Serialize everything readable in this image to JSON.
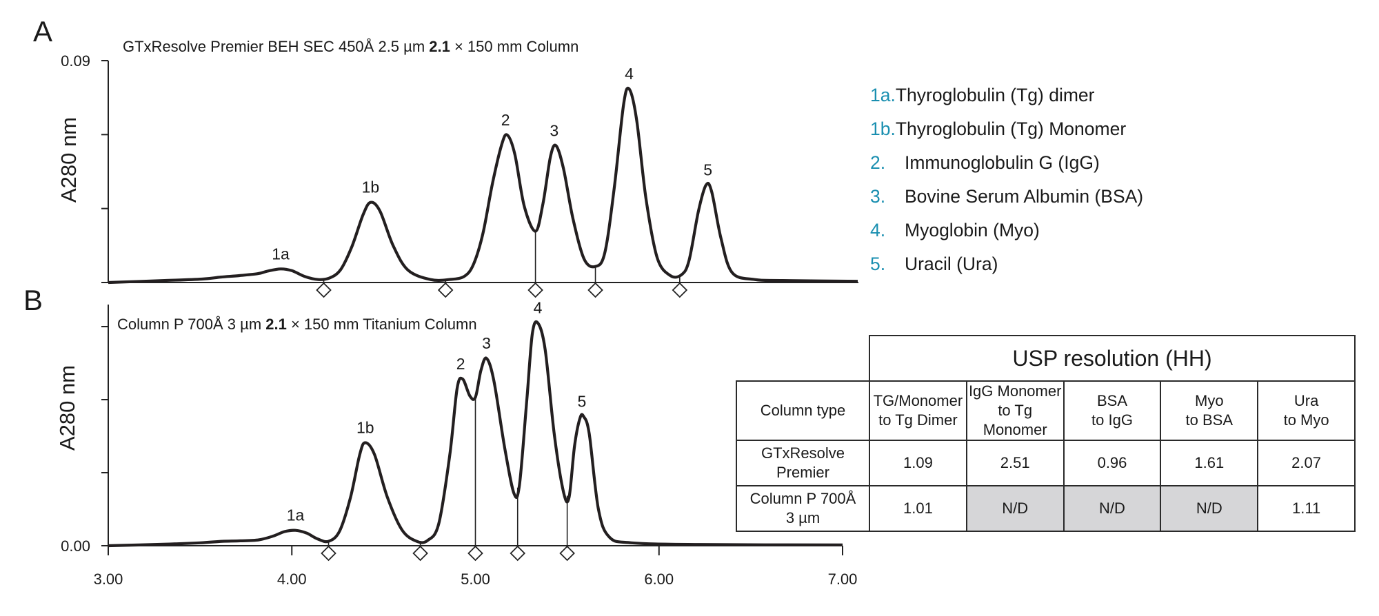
{
  "panel_labels": [
    "A",
    "B"
  ],
  "legend": [
    {
      "key": "1a.",
      "label": "Thyroglobulin (Tg) dimer"
    },
    {
      "key": "1b.",
      "label": "Thyroglobulin (Tg) Monomer"
    },
    {
      "key": "2.",
      "label": "Immunoglobulin G (IgG)"
    },
    {
      "key": "3.",
      "label": "Bovine Serum Albumin (BSA)"
    },
    {
      "key": "4.",
      "label": "Myoglobin (Myo)"
    },
    {
      "key": "5.",
      "label": "Uracil (Ura)"
    }
  ],
  "colors": {
    "legend_key": "#1a8fb0",
    "trace": "#231f20",
    "nd_cell": "#d6d6d8"
  },
  "table": {
    "title": "USP resolution (HH)",
    "corner": "Column type",
    "columns": [
      [
        "TG/Monomer",
        "to Tg Dimer"
      ],
      [
        "IgG Monomer",
        "to Tg Monomer"
      ],
      [
        "BSA",
        "to IgG"
      ],
      [
        "Myo",
        "to BSA"
      ],
      [
        "Ura",
        "to Myo"
      ]
    ],
    "rows": [
      {
        "name": [
          "GTxResolve",
          "Premier"
        ],
        "values": [
          "1.09",
          "2.51",
          "0.96",
          "1.61",
          "2.07"
        ]
      },
      {
        "name": [
          "Column P 700Å",
          "3 µm"
        ],
        "values": [
          "1.01",
          "N/D",
          "N/D",
          "N/D",
          "1.11"
        ]
      }
    ]
  },
  "chart_data": [
    {
      "type": "line",
      "panel": "A",
      "title_parts": [
        "GTxResolve Premier BEH SEC 450Å 2.5 µm ",
        "2.1",
        " × 150 mm Column"
      ],
      "ylabel": "A280 nm",
      "xlim": [
        3.0,
        7.0
      ],
      "ylim": [
        0.0,
        0.09
      ],
      "yticks": [
        0.0,
        0.03,
        0.06,
        0.09
      ],
      "ytick_labels": [
        "",
        "",
        "",
        "0.09"
      ],
      "peaks": [
        {
          "label": "1a",
          "x": 3.92,
          "y": 0.0055
        },
        {
          "label": "1b",
          "x": 4.4,
          "y": 0.0325
        },
        {
          "label": "2",
          "x": 5.12,
          "y": 0.0598
        },
        {
          "label": "3",
          "x": 5.38,
          "y": 0.0555
        },
        {
          "label": "4",
          "x": 5.78,
          "y": 0.0785
        },
        {
          "label": "5",
          "x": 6.2,
          "y": 0.0395
        }
      ],
      "integration_marks": [
        4.15,
        4.8,
        5.28,
        5.6,
        6.05
      ],
      "trace": [
        [
          3.0,
          0.0
        ],
        [
          3.3,
          0.0008
        ],
        [
          3.5,
          0.0014
        ],
        [
          3.6,
          0.0022
        ],
        [
          3.7,
          0.0028
        ],
        [
          3.8,
          0.0036
        ],
        [
          3.85,
          0.0046
        ],
        [
          3.92,
          0.0055
        ],
        [
          3.98,
          0.0048
        ],
        [
          4.05,
          0.0024
        ],
        [
          4.12,
          0.0012
        ],
        [
          4.18,
          0.0018
        ],
        [
          4.24,
          0.0052
        ],
        [
          4.3,
          0.0145
        ],
        [
          4.36,
          0.0275
        ],
        [
          4.4,
          0.0325
        ],
        [
          4.45,
          0.029
        ],
        [
          4.52,
          0.015
        ],
        [
          4.6,
          0.005
        ],
        [
          4.72,
          0.0012
        ],
        [
          4.82,
          0.0012
        ],
        [
          4.9,
          0.0025
        ],
        [
          4.95,
          0.0075
        ],
        [
          5.0,
          0.02
        ],
        [
          5.05,
          0.04
        ],
        [
          5.1,
          0.056
        ],
        [
          5.13,
          0.0598
        ],
        [
          5.17,
          0.052
        ],
        [
          5.22,
          0.031
        ],
        [
          5.28,
          0.0208
        ],
        [
          5.32,
          0.032
        ],
        [
          5.36,
          0.051
        ],
        [
          5.39,
          0.0555
        ],
        [
          5.43,
          0.046
        ],
        [
          5.48,
          0.026
        ],
        [
          5.54,
          0.0095
        ],
        [
          5.6,
          0.0065
        ],
        [
          5.65,
          0.012
        ],
        [
          5.7,
          0.038
        ],
        [
          5.75,
          0.072
        ],
        [
          5.78,
          0.0785
        ],
        [
          5.82,
          0.066
        ],
        [
          5.87,
          0.034
        ],
        [
          5.93,
          0.01
        ],
        [
          6.0,
          0.0028
        ],
        [
          6.06,
          0.0032
        ],
        [
          6.1,
          0.009
        ],
        [
          6.15,
          0.029
        ],
        [
          6.19,
          0.0395
        ],
        [
          6.22,
          0.037
        ],
        [
          6.27,
          0.018
        ],
        [
          6.33,
          0.004
        ],
        [
          6.45,
          0.0012
        ],
        [
          6.6,
          0.0008
        ],
        [
          7.0,
          0.0005
        ]
      ]
    },
    {
      "type": "line",
      "panel": "B",
      "title_parts": [
        "Column P 700Å 3 µm ",
        "2.1",
        " × 150 mm Titanium Column"
      ],
      "ylabel": "A280 nm",
      "xlim": [
        3.0,
        7.0
      ],
      "ylim": [
        0.0,
        0.09
      ],
      "xticks": [
        3.0,
        4.0,
        5.0,
        6.0,
        7.0
      ],
      "xtick_labels": [
        "3.00",
        "4.00",
        "5.00",
        "6.00",
        "7.00"
      ],
      "yticks": [
        0.0,
        0.03,
        0.06,
        0.09
      ],
      "ytick_labels": [
        "0.00",
        "",
        "",
        ""
      ],
      "peaks": [
        {
          "label": "1a",
          "x": 4.02,
          "y": 0.0063
        },
        {
          "label": "1b",
          "x": 4.4,
          "y": 0.0423
        },
        {
          "label": "2",
          "x": 4.92,
          "y": 0.0685
        },
        {
          "label": "3",
          "x": 5.06,
          "y": 0.077
        },
        {
          "label": "4",
          "x": 5.34,
          "y": 0.0915
        },
        {
          "label": "5",
          "x": 5.58,
          "y": 0.053
        }
      ],
      "integration_marks": [
        4.2,
        4.7,
        5.0,
        5.23,
        5.5
      ],
      "trace": [
        [
          3.0,
          0.0
        ],
        [
          3.3,
          0.0006
        ],
        [
          3.5,
          0.0012
        ],
        [
          3.62,
          0.0018
        ],
        [
          3.72,
          0.002
        ],
        [
          3.82,
          0.0024
        ],
        [
          3.9,
          0.004
        ],
        [
          3.96,
          0.0058
        ],
        [
          4.02,
          0.0063
        ],
        [
          4.08,
          0.0052
        ],
        [
          4.14,
          0.0028
        ],
        [
          4.2,
          0.0018
        ],
        [
          4.26,
          0.006
        ],
        [
          4.32,
          0.02
        ],
        [
          4.37,
          0.0375
        ],
        [
          4.4,
          0.0423
        ],
        [
          4.45,
          0.0375
        ],
        [
          4.52,
          0.02
        ],
        [
          4.6,
          0.0065
        ],
        [
          4.68,
          0.0018
        ],
        [
          4.74,
          0.0022
        ],
        [
          4.8,
          0.009
        ],
        [
          4.86,
          0.037
        ],
        [
          4.9,
          0.0645
        ],
        [
          4.93,
          0.0685
        ],
        [
          4.97,
          0.0615
        ],
        [
          5.0,
          0.061
        ],
        [
          5.03,
          0.072
        ],
        [
          5.06,
          0.077
        ],
        [
          5.1,
          0.068
        ],
        [
          5.16,
          0.04
        ],
        [
          5.21,
          0.0215
        ],
        [
          5.24,
          0.025
        ],
        [
          5.28,
          0.06
        ],
        [
          5.31,
          0.087
        ],
        [
          5.34,
          0.0915
        ],
        [
          5.38,
          0.0805
        ],
        [
          5.43,
          0.0455
        ],
        [
          5.48,
          0.022
        ],
        [
          5.51,
          0.0198
        ],
        [
          5.54,
          0.041
        ],
        [
          5.57,
          0.0525
        ],
        [
          5.59,
          0.053
        ],
        [
          5.62,
          0.046
        ],
        [
          5.67,
          0.015
        ],
        [
          5.73,
          0.0035
        ],
        [
          5.85,
          0.0012
        ],
        [
          6.2,
          0.0005
        ],
        [
          7.0,
          0.0003
        ]
      ]
    }
  ]
}
